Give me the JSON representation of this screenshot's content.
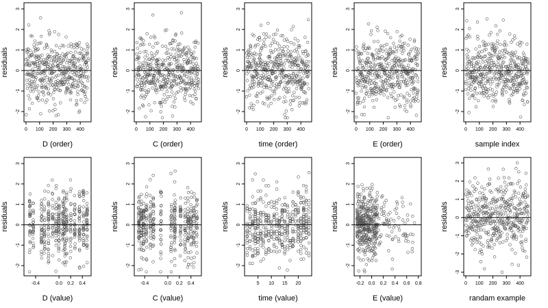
{
  "chart_data": [
    {
      "type": "scatter",
      "panel": "D (order)",
      "xlabel": "D (order)",
      "ylabel": "residuals",
      "xlim": [
        -15,
        480
      ],
      "ylim": [
        -2.5,
        3.3
      ],
      "xticks": [
        0,
        100,
        200,
        300,
        400
      ],
      "xtick_labels": [
        "0",
        "100",
        "200",
        "300",
        "400"
      ],
      "yticks": [
        -2,
        -1,
        0,
        1,
        2,
        3
      ],
      "ytick_labels": [
        "-2",
        "-1",
        "0",
        "1",
        "2",
        "3"
      ],
      "reference_line_y": 0,
      "x_model": {
        "kind": "uniform",
        "min": 0,
        "max": 460
      },
      "n_points": 460,
      "residual_spread": {
        "sd": 0.85,
        "min": -2.3,
        "max": 3.1
      }
    },
    {
      "type": "scatter",
      "panel": "C (order)",
      "xlabel": "C (order)",
      "ylabel": "residuals",
      "xlim": [
        -15,
        480
      ],
      "ylim": [
        -2.5,
        3.3
      ],
      "xticks": [
        0,
        100,
        200,
        300,
        400
      ],
      "xtick_labels": [
        "0",
        "100",
        "200",
        "300",
        "400"
      ],
      "yticks": [
        -2,
        -1,
        0,
        1,
        2,
        3
      ],
      "ytick_labels": [
        "-2",
        "-1",
        "0",
        "1",
        "2",
        "3"
      ],
      "reference_line_y": 0,
      "x_model": {
        "kind": "uniform",
        "min": 0,
        "max": 460
      },
      "n_points": 460,
      "residual_spread": {
        "sd": 0.85,
        "min": -2.3,
        "max": 3.1
      }
    },
    {
      "type": "scatter",
      "panel": "time (order)",
      "xlabel": "time (order)",
      "ylabel": "residuals",
      "xlim": [
        -15,
        480
      ],
      "ylim": [
        -2.5,
        3.3
      ],
      "xticks": [
        0,
        100,
        200,
        300,
        400
      ],
      "xtick_labels": [
        "0",
        "100",
        "200",
        "300",
        "400"
      ],
      "yticks": [
        -2,
        -1,
        0,
        1,
        2,
        3
      ],
      "ytick_labels": [
        "-2",
        "-1",
        "0",
        "1",
        "2",
        "3"
      ],
      "reference_line_y": 0,
      "x_model": {
        "kind": "uniform",
        "min": 0,
        "max": 460
      },
      "n_points": 460,
      "residual_spread": {
        "sd": 0.85,
        "min": -2.3,
        "max": 3.1
      }
    },
    {
      "type": "scatter",
      "panel": "E (order)",
      "xlabel": "E (order)",
      "ylabel": "residuals",
      "xlim": [
        -15,
        480
      ],
      "ylim": [
        -2.5,
        3.3
      ],
      "xticks": [
        0,
        100,
        200,
        300,
        400
      ],
      "xtick_labels": [
        "0",
        "100",
        "200",
        "300",
        "400"
      ],
      "yticks": [
        -2,
        -1,
        0,
        1,
        2,
        3
      ],
      "ytick_labels": [
        "-2",
        "-1",
        "0",
        "1",
        "2",
        "3"
      ],
      "reference_line_y": 0,
      "x_model": {
        "kind": "uniform",
        "min": 0,
        "max": 460
      },
      "n_points": 460,
      "residual_spread": {
        "sd": 0.85,
        "min": -2.3,
        "max": 3.1
      }
    },
    {
      "type": "scatter",
      "panel": "sample index",
      "xlabel": "sample index",
      "ylabel": "residuals",
      "xlim": [
        -15,
        480
      ],
      "ylim": [
        -2.5,
        3.3
      ],
      "xticks": [
        0,
        100,
        200,
        300,
        400
      ],
      "xtick_labels": [
        "0",
        "100",
        "200",
        "300",
        "400"
      ],
      "yticks": [
        -2,
        -1,
        0,
        1,
        2,
        3
      ],
      "ytick_labels": [
        "-2",
        "-1",
        "0",
        "1",
        "2",
        "3"
      ],
      "reference_line_y": 0,
      "x_model": {
        "kind": "uniform",
        "min": 0,
        "max": 460
      },
      "n_points": 460,
      "residual_spread": {
        "sd": 0.85,
        "min": -2.3,
        "max": 3.1
      }
    },
    {
      "type": "scatter",
      "panel": "D (value)",
      "xlabel": "D (value)",
      "ylabel": "residuals",
      "xlim": [
        -0.6,
        0.55
      ],
      "ylim": [
        -2.5,
        3.3
      ],
      "xticks": [
        -0.4,
        0,
        0.2,
        0.4
      ],
      "xtick_labels": [
        "-0.4",
        "0.0",
        "0.2",
        "0.4"
      ],
      "yticks": [
        -2,
        -1,
        0,
        1,
        2,
        3
      ],
      "ytick_labels": [
        "-2",
        "-1",
        "0",
        "1",
        "2",
        "3"
      ],
      "reference_line_y": 0,
      "x_model": {
        "kind": "clustered",
        "values": [
          -0.5,
          -0.44,
          -0.3,
          -0.25,
          -0.18,
          -0.11,
          -0.05,
          0.0,
          0.07,
          0.1,
          0.13,
          0.2,
          0.27,
          0.35,
          0.42,
          0.48
        ],
        "jitter": 0.006
      },
      "n_points": 460,
      "residual_spread": {
        "sd": 0.85,
        "min": -2.3,
        "max": 3.1
      }
    },
    {
      "type": "scatter",
      "panel": "C (value)",
      "xlabel": "C (value)",
      "ylabel": "residuals",
      "xlim": [
        -0.58,
        0.58
      ],
      "ylim": [
        -2.5,
        3.3
      ],
      "xticks": [
        -0.4,
        0,
        0.2,
        0.4
      ],
      "xtick_labels": [
        "-0.4",
        "0.0",
        "0.2",
        "0.4"
      ],
      "yticks": [
        -2,
        -1,
        0,
        1,
        2,
        3
      ],
      "ytick_labels": [
        "-2",
        "-1",
        "0",
        "1",
        "2",
        "3"
      ],
      "reference_line_y": 0,
      "x_model": {
        "kind": "clustered",
        "values": [
          -0.5,
          -0.46,
          -0.42,
          -0.37,
          -0.3,
          -0.25,
          -0.12,
          0.06,
          0.12,
          0.22,
          0.3,
          0.35,
          0.4,
          0.45,
          0.5
        ],
        "jitter": 0.008
      },
      "n_points": 460,
      "residual_spread": {
        "sd": 0.85,
        "min": -2.3,
        "max": 3.1
      }
    },
    {
      "type": "scatter",
      "panel": "time (value)",
      "xlabel": "time (value)",
      "ylabel": "residuals",
      "xlim": [
        0,
        25
      ],
      "ylim": [
        -2.5,
        3.3
      ],
      "xticks": [
        5,
        10,
        15,
        20
      ],
      "xtick_labels": [
        "5",
        "10",
        "15",
        "20"
      ],
      "yticks": [
        -2,
        -1,
        0,
        1,
        2,
        3
      ],
      "ytick_labels": [
        "-2",
        "-1",
        "0",
        "1",
        "2",
        "3"
      ],
      "reference_line_y": 0,
      "x_model": {
        "kind": "clustered",
        "values": [
          1,
          2,
          3,
          4,
          5,
          6,
          7,
          8,
          9,
          10,
          11,
          12,
          13,
          14,
          15,
          16,
          17,
          18,
          19,
          20,
          21,
          22,
          23,
          24
        ],
        "jitter": 0.05
      },
      "n_points": 460,
      "residual_spread": {
        "sd": 0.85,
        "min": -2.3,
        "max": 3.1
      }
    },
    {
      "type": "scatter",
      "panel": "E (value)",
      "xlabel": "E (value)",
      "ylabel": "residuals",
      "xlim": [
        -0.3,
        0.85
      ],
      "ylim": [
        -2.5,
        3.3
      ],
      "xticks": [
        -0.2,
        0,
        0.2,
        0.4,
        0.6,
        0.8
      ],
      "xtick_labels": [
        "-0.2",
        "0.0",
        "0.2",
        "0.4",
        "0.6",
        "0.8"
      ],
      "yticks": [
        -2,
        -1,
        0,
        1,
        2,
        3
      ],
      "ytick_labels": [
        "-2",
        "-1",
        "0",
        "1",
        "2",
        "3"
      ],
      "reference_line_y": 0,
      "x_model": {
        "kind": "skewed",
        "min": -0.25,
        "max": 0.75,
        "dense_below": 0.1
      },
      "n_points": 460,
      "residual_spread": {
        "sd": 0.85,
        "min": -2.3,
        "max": 3.1
      }
    },
    {
      "type": "scatter",
      "panel": "randam example",
      "xlabel": "randam example",
      "ylabel": "residuals",
      "xlim": [
        -15,
        480
      ],
      "ylim": [
        -3.2,
        3.3
      ],
      "xticks": [
        0,
        100,
        200,
        300,
        400
      ],
      "xtick_labels": [
        "0",
        "100",
        "200",
        "300",
        "400"
      ],
      "yticks": [
        -3,
        -2,
        -1,
        0,
        1,
        2,
        3
      ],
      "ytick_labels": [
        "-3",
        "-2",
        "-1",
        "0",
        "1",
        "2",
        "3"
      ],
      "reference_line_y": 0,
      "x_model": {
        "kind": "uniform",
        "min": 0,
        "max": 460
      },
      "n_points": 460,
      "residual_spread": {
        "sd": 1.0,
        "min": -3.0,
        "max": 3.0
      }
    }
  ]
}
